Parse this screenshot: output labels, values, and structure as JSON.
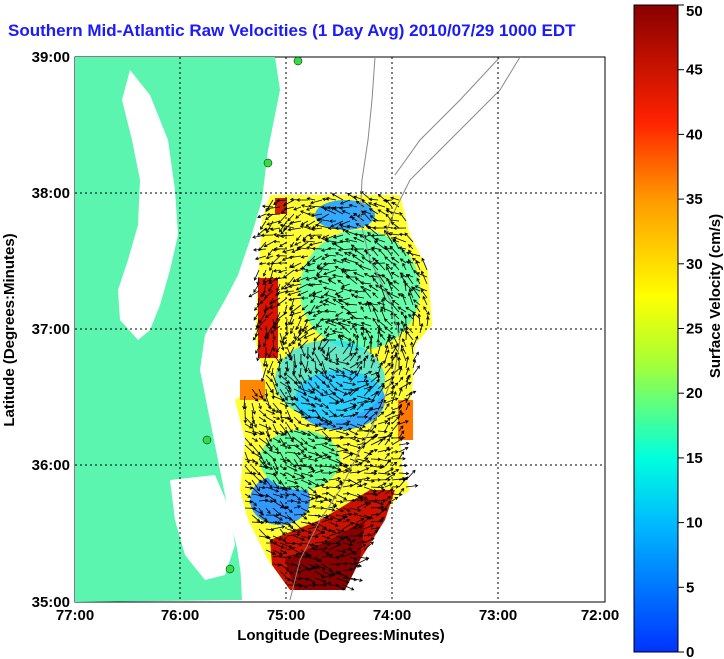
{
  "title": "Southern Mid-Atlantic Raw Velocities (1 Day Avg) 2010/07/29 1000 EDT",
  "x_axis": {
    "label": "Longitude (Degrees:Minutes)",
    "ticks": [
      "77:00",
      "76:00",
      "75:00",
      "74:00",
      "73:00",
      "72:00"
    ]
  },
  "y_axis": {
    "label": "Latitude (Degrees:Minutes)",
    "ticks": [
      "39:00",
      "38:00",
      "37:00",
      "36:00",
      "35:00"
    ]
  },
  "colorbar": {
    "label": "Surface Velocity (cm/s)",
    "ticks": [
      "50",
      "45",
      "40",
      "35",
      "30",
      "25",
      "20",
      "15",
      "10",
      "5",
      "0"
    ],
    "min": 0,
    "max": 50,
    "colors": [
      "#0033ff",
      "#00ccff",
      "#00ffcc",
      "#ccff00",
      "#ffff00",
      "#ff9900",
      "#ff0000",
      "#990000"
    ]
  },
  "colors": {
    "land": "#5bf5b0",
    "title": "#1a1aff"
  }
}
